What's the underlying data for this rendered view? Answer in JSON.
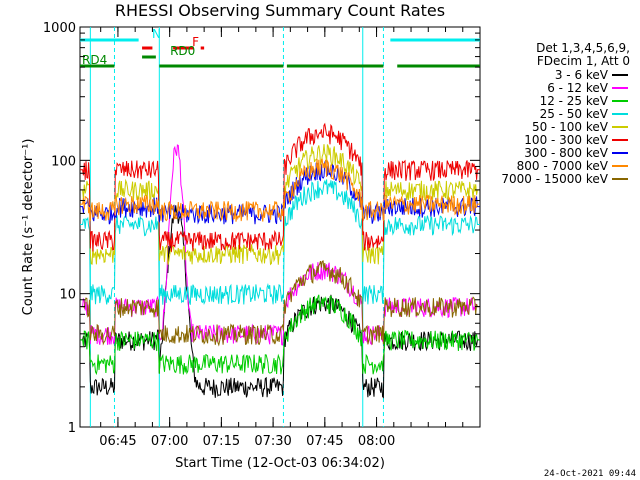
{
  "chart_data": {
    "type": "line",
    "title": "RHESSI Observing Summary Count Rates",
    "xlabel": "Start Time (12-Oct-03 06:34:02)",
    "ylabel": "Count Rate (s⁻¹ detector⁻¹)",
    "yscale": "log",
    "ylim": [
      1,
      1000
    ],
    "yticks": [
      "1",
      "10",
      "100",
      "1000"
    ],
    "xlim_min": [
      394,
      510
    ],
    "xticks": [
      {
        "label": "06:45",
        "min": 405
      },
      {
        "label": "07:00",
        "min": 420
      },
      {
        "label": "07:15",
        "min": 435
      },
      {
        "label": "07:30",
        "min": 450
      },
      {
        "label": "07:45",
        "min": 465
      },
      {
        "label": "08:00",
        "min": 480
      }
    ],
    "legend_header": [
      "Det 1,3,4,5,6,9,",
      "FDecim 1, Att 0"
    ],
    "legend_position": "right",
    "series": [
      {
        "name": "3 - 6 keV",
        "color": "#000000",
        "night": 2,
        "day": 4.5,
        "peak": 40,
        "peakMin": 422,
        "peakW": 2.5,
        "spike": 0.0
      },
      {
        "name": "6 - 12 keV",
        "color": "#ff00ff",
        "night": 5,
        "day": 8,
        "peak": 120,
        "peakMin": 422,
        "peakW": 1.8,
        "spike": 0.0
      },
      {
        "name": "12 - 25 keV",
        "color": "#00cc00",
        "night": 3,
        "day": 4.5,
        "peak": 0,
        "peakMin": 422,
        "peakW": 2,
        "spike": 0.0
      },
      {
        "name": "25 - 50 keV",
        "color": "#00dddd",
        "night": 10,
        "day": 33,
        "peak": 0,
        "peakMin": 422,
        "peakW": 2,
        "spike": 0.0
      },
      {
        "name": "50 - 100 keV",
        "color": "#cccc00",
        "night": 20,
        "day": 60,
        "peak": 0,
        "peakMin": 422,
        "peakW": 2,
        "spike": 0.0
      },
      {
        "name": "100 - 300 keV",
        "color": "#ee0000",
        "night": 25,
        "day": 85,
        "peak": 0,
        "peakMin": 422,
        "peakW": 2,
        "spike": 0.0
      },
      {
        "name": "300 - 800 keV",
        "color": "#0000ee",
        "night": 40,
        "day": 45,
        "peak": 0,
        "peakMin": 422,
        "peakW": 2,
        "spike": 0.0
      },
      {
        "name": "800 - 7000 keV",
        "color": "#ff8800",
        "night": 42,
        "day": 47,
        "peak": 0,
        "peakMin": 422,
        "peakW": 2,
        "spike": 0.0
      },
      {
        "name": "7000 - 15000 keV",
        "color": "#886600",
        "night": 5,
        "day": 8,
        "peak": 0,
        "peakMin": 422,
        "peakW": 2,
        "spike": 0.0
      }
    ],
    "flags": [
      {
        "label": "N",
        "color": "#00eeee",
        "segments": [
          [
            394,
            411
          ],
          [
            484,
            510
          ]
        ]
      },
      {
        "label": "F",
        "color": "#ee0000",
        "segments": [
          [
            412,
            415
          ],
          [
            421,
            427
          ],
          [
            429,
            430
          ]
        ]
      },
      {
        "label": "RD0",
        "color": "#008800",
        "segments": [
          [
            412,
            416
          ]
        ]
      },
      {
        "label": "RD4",
        "color": "#008800",
        "segments": [
          [
            394,
            404
          ],
          [
            417,
            453
          ],
          [
            454,
            482
          ],
          [
            486,
            510
          ]
        ]
      }
    ],
    "timestamp": "24-Oct-2021 09:44"
  }
}
